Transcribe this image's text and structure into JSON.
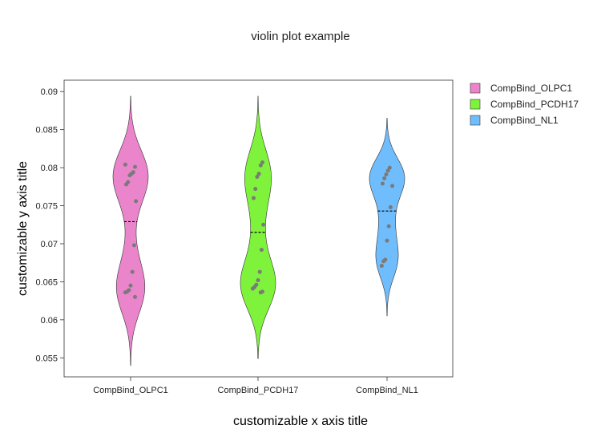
{
  "chart_data": {
    "type": "violin",
    "title": "violin plot example",
    "xlabel": "customizable x axis title",
    "ylabel": "customizable y axis title",
    "ylim": [
      0.0525,
      0.0915
    ],
    "y_ticks": [
      "0.055",
      "0.06",
      "0.065",
      "0.07",
      "0.075",
      "0.08",
      "0.085",
      "0.09"
    ],
    "grid": false,
    "legend_position": "right",
    "categories": [
      "CompBind_OLPC1",
      "CompBind_PCDH17",
      "CompBind_NL1"
    ],
    "series": [
      {
        "name": "CompBind_OLPC1",
        "color": "#ea85cb",
        "median": 0.0729,
        "range": [
          0.054,
          0.0894
        ],
        "points": [
          0.0804,
          0.0801,
          0.0794,
          0.0792,
          0.079,
          0.0781,
          0.0778,
          0.0756,
          0.0698,
          0.0663,
          0.0645,
          0.0639,
          0.0637,
          0.0636,
          0.063
        ]
      },
      {
        "name": "CompBind_PCDH17",
        "color": "#7ff33c",
        "median": 0.0715,
        "range": [
          0.0549,
          0.0894
        ],
        "points": [
          0.0807,
          0.0803,
          0.0792,
          0.0788,
          0.0772,
          0.076,
          0.0725,
          0.0692,
          0.0663,
          0.0652,
          0.0646,
          0.0643,
          0.0641,
          0.0637,
          0.0636
        ]
      },
      {
        "name": "CompBind_NL1",
        "color": "#70bdfd",
        "median": 0.0743,
        "range": [
          0.0605,
          0.0865
        ],
        "points": [
          0.08,
          0.0796,
          0.0791,
          0.0786,
          0.0779,
          0.0776,
          0.0748,
          0.0723,
          0.0704,
          0.0679,
          0.0677,
          0.0671
        ]
      }
    ]
  }
}
